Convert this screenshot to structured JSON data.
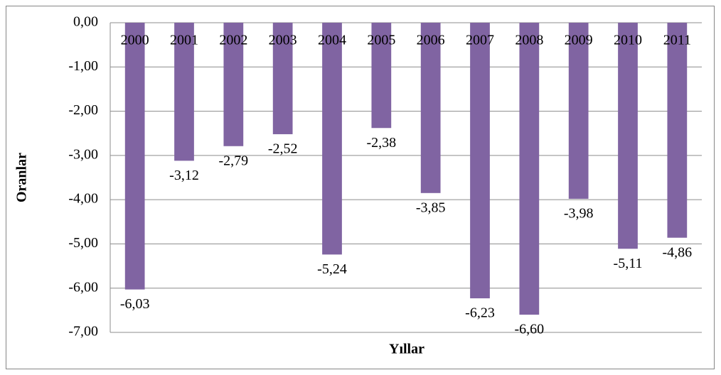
{
  "chart_data": {
    "type": "bar",
    "x_label": "Yıllar",
    "y_label": "Oranlar",
    "categories": [
      "2000",
      "2001",
      "2002",
      "2003",
      "2004",
      "2005",
      "2006",
      "2007",
      "2008",
      "2009",
      "2010",
      "2011"
    ],
    "values": [
      -6.03,
      -3.12,
      -2.79,
      -2.52,
      -5.24,
      -2.38,
      -3.85,
      -6.23,
      -6.6,
      -3.98,
      -5.11,
      -4.86
    ],
    "value_labels": [
      "-6,03",
      "-3,12",
      "-2,79",
      "-2,52",
      "-5,24",
      "-2,38",
      "-3,85",
      "-6,23",
      "-6,60",
      "-3,98",
      "-5,11",
      "-4,86"
    ],
    "color": "#8064a2",
    "ylim": [
      -7,
      0
    ],
    "yticks": [
      {
        "value": 0,
        "label": "0,00"
      },
      {
        "value": -1,
        "label": "-1,00"
      },
      {
        "value": -2,
        "label": "-2,00"
      },
      {
        "value": -3,
        "label": "-3,00"
      },
      {
        "value": -4,
        "label": "-4,00"
      },
      {
        "value": -5,
        "label": "-5,00"
      },
      {
        "value": -6,
        "label": "-6,00"
      },
      {
        "value": -7,
        "label": "-7,00"
      }
    ],
    "grid": true
  }
}
